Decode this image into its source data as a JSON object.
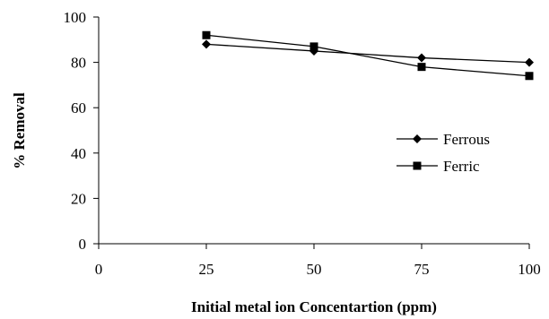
{
  "chart_data": {
    "type": "line",
    "title": "",
    "xlabel": "Initial metal ion Concentartion (ppm)",
    "ylabel": "% Removal",
    "xlim": [
      0,
      100
    ],
    "ylim": [
      0,
      100
    ],
    "xticks": [
      "0",
      "25",
      "50",
      "75",
      "100"
    ],
    "yticks": [
      "0",
      "20",
      "40",
      "60",
      "80",
      "100"
    ],
    "grid": false,
    "legend_position": "right",
    "x": [
      25,
      50,
      75,
      100
    ],
    "series": [
      {
        "name": "Ferrous",
        "marker": "diamond",
        "color": "#000000",
        "values": [
          88,
          85,
          82,
          80
        ]
      },
      {
        "name": "Ferric",
        "marker": "square",
        "color": "#000000",
        "values": [
          92,
          87,
          78,
          74
        ]
      }
    ]
  }
}
